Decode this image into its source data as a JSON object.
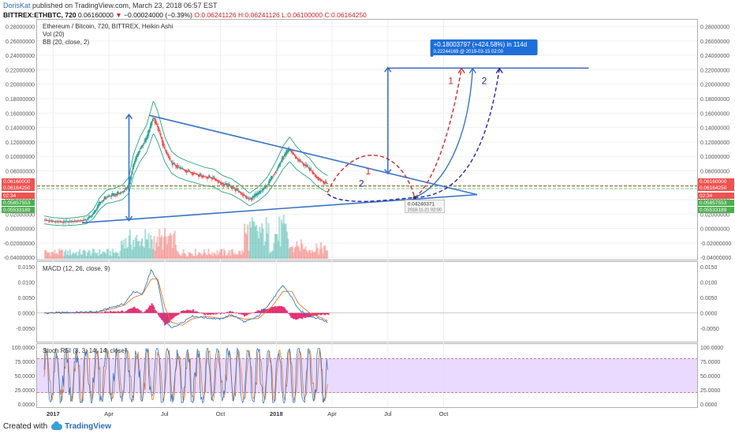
{
  "header": {
    "author": "DorisKat",
    "published_text": "published on TradingView.com, March 23, 2018 06:57 EST",
    "symbol": "BITTREX:ETHBTC, 720",
    "last_price": "0.06160000",
    "change": "−0.00024000 (−0.39%)",
    "ohlc": "O:0.06241126 H:0.06241126 L:0.06100000 C:0.06164250"
  },
  "footer": {
    "created_with": "Created with",
    "brand": "TradingView"
  },
  "colors": {
    "up": "#26a69a",
    "down": "#ef5350",
    "trend_line": "#3a74c8",
    "path1": "#d42a2a",
    "path2": "#2626a8",
    "stoch_band": "#e6d3ff",
    "label_red": "#ef5350",
    "label_green": "#4caf50",
    "label_blue": "#1e6fd9"
  },
  "chart_data": [
    {
      "type": "candlestick",
      "title": "Ethereum / Bitcoin, 720, BITTREX, Heikin Ashi",
      "legend": [
        "Vol (20)",
        "BB (20, close, 2)"
      ],
      "x_ticks": [
        "2017",
        "Apr",
        "Jul",
        "Oct",
        "2018",
        "Apr",
        "Jul",
        "Oct"
      ],
      "y_ticks": [
        "0.28000000",
        "0.26000000",
        "0.24000000",
        "0.22000000",
        "0.20000000",
        "0.18000000",
        "0.16000000",
        "0.14000000",
        "0.12000000",
        "0.10000000",
        "0.08000000",
        "0.06000000",
        "0.04000000",
        "0.02000000",
        "0.00000000",
        "-0.02000000",
        "-0.04000000"
      ],
      "ylim": [
        -0.042,
        0.285
      ],
      "price_series": [
        [
          2016.96,
          0.012
        ],
        [
          2017.0,
          0.01
        ],
        [
          2017.05,
          0.009
        ],
        [
          2017.1,
          0.01
        ],
        [
          2017.15,
          0.012
        ],
        [
          2017.18,
          0.02
        ],
        [
          2017.21,
          0.035
        ],
        [
          2017.24,
          0.044
        ],
        [
          2017.27,
          0.046
        ],
        [
          2017.31,
          0.05
        ],
        [
          2017.34,
          0.06
        ],
        [
          2017.36,
          0.088
        ],
        [
          2017.39,
          0.11
        ],
        [
          2017.42,
          0.125
        ],
        [
          2017.45,
          0.155
        ],
        [
          2017.47,
          0.14
        ],
        [
          2017.5,
          0.11
        ],
        [
          2017.53,
          0.092
        ],
        [
          2017.56,
          0.085
        ],
        [
          2017.6,
          0.08
        ],
        [
          2017.64,
          0.076
        ],
        [
          2017.68,
          0.072
        ],
        [
          2017.72,
          0.07
        ],
        [
          2017.76,
          0.062
        ],
        [
          2017.8,
          0.058
        ],
        [
          2017.84,
          0.05
        ],
        [
          2017.88,
          0.04
        ],
        [
          2017.92,
          0.048
        ],
        [
          2017.96,
          0.06
        ],
        [
          2018.0,
          0.08
        ],
        [
          2018.03,
          0.098
        ],
        [
          2018.06,
          0.11
        ],
        [
          2018.09,
          0.098
        ],
        [
          2018.12,
          0.09
        ],
        [
          2018.15,
          0.083
        ],
        [
          2018.18,
          0.072
        ],
        [
          2018.21,
          0.065
        ],
        [
          2018.23,
          0.062
        ]
      ],
      "support_labels": [
        "0.06160000",
        "0.06164250",
        "02:34",
        "0.05857553",
        "0.05533189"
      ],
      "projection": {
        "measure_label": "+0.18003797 (+424.58%) in 114d",
        "measure_sub": "0.22244169 @ 2019-03-15 02:00",
        "low_label": "0.04240371",
        "low_date": "2018-11-21 02:00",
        "path_labels": [
          "1",
          "2"
        ]
      }
    },
    {
      "type": "line",
      "title": "MACD (12, 26, close, 9)",
      "y_ticks": [
        "0.0150",
        "0.0100",
        "0.0050",
        "0.0000",
        "-0.0050"
      ],
      "ylim": [
        -0.007,
        0.0155
      ],
      "macd": [
        [
          2016.96,
          0.0
        ],
        [
          2017.1,
          0.0002
        ],
        [
          2017.2,
          0.0004
        ],
        [
          2017.27,
          0.002
        ],
        [
          2017.32,
          0.003
        ],
        [
          2017.36,
          0.007
        ],
        [
          2017.4,
          0.006
        ],
        [
          2017.44,
          0.014
        ],
        [
          2017.47,
          0.01
        ],
        [
          2017.5,
          -0.002
        ],
        [
          2017.53,
          -0.005
        ],
        [
          2017.58,
          -0.003
        ],
        [
          2017.62,
          -0.001
        ],
        [
          2017.68,
          -0.0015
        ],
        [
          2017.75,
          -0.002
        ],
        [
          2017.8,
          -0.0005
        ],
        [
          2017.86,
          -0.003
        ],
        [
          2017.92,
          -0.001
        ],
        [
          2017.98,
          0.004
        ],
        [
          2018.03,
          0.009
        ],
        [
          2018.07,
          0.005
        ],
        [
          2018.1,
          0.001
        ],
        [
          2018.15,
          -0.001
        ],
        [
          2018.2,
          -0.002
        ],
        [
          2018.23,
          -0.003
        ]
      ],
      "signal": [
        [
          2016.96,
          0.0
        ],
        [
          2017.1,
          0.0001
        ],
        [
          2017.2,
          0.0003
        ],
        [
          2017.27,
          0.0015
        ],
        [
          2017.32,
          0.0025
        ],
        [
          2017.36,
          0.005
        ],
        [
          2017.4,
          0.006
        ],
        [
          2017.44,
          0.011
        ],
        [
          2017.47,
          0.011
        ],
        [
          2017.5,
          0.002
        ],
        [
          2017.53,
          -0.003
        ],
        [
          2017.58,
          -0.004
        ],
        [
          2017.62,
          -0.002
        ],
        [
          2017.68,
          -0.001
        ],
        [
          2017.75,
          -0.0018
        ],
        [
          2017.8,
          -0.001
        ],
        [
          2017.86,
          -0.002
        ],
        [
          2017.92,
          -0.0018
        ],
        [
          2017.98,
          0.002
        ],
        [
          2018.03,
          0.007
        ],
        [
          2018.07,
          0.007
        ],
        [
          2018.1,
          0.003
        ],
        [
          2018.15,
          0.0
        ],
        [
          2018.2,
          -0.0015
        ],
        [
          2018.23,
          -0.0025
        ]
      ]
    },
    {
      "type": "line",
      "title": "Stoch RSI (3, 3, 14, 14, close)",
      "y_ticks": [
        "100.0000",
        "75.0000",
        "50.0000",
        "25.0000",
        "0.0000"
      ],
      "ylim": [
        0,
        100
      ],
      "band": [
        20,
        80
      ],
      "range_x": [
        2016.96,
        2018.23
      ]
    }
  ]
}
